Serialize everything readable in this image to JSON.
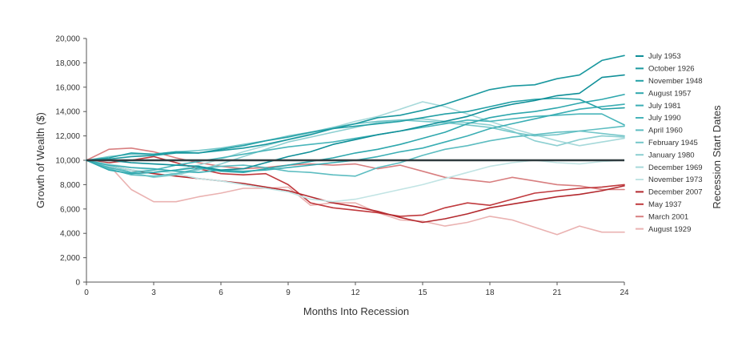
{
  "chart_data": {
    "type": "line",
    "xlabel": "Months Into Recession",
    "ylabel": "Growth of Wealth ($)",
    "legend_title": "Recession Start Dates",
    "legend_position": "right",
    "xlim": [
      0,
      24
    ],
    "ylim": [
      0,
      20000
    ],
    "x_ticks": [
      "0",
      "3",
      "6",
      "9",
      "12",
      "15",
      "18",
      "21",
      "24"
    ],
    "y_ticks": [
      "0",
      "2,000",
      "4,000",
      "6,000",
      "8,000",
      "10,000",
      "12,000",
      "14,000",
      "16,000",
      "18,000",
      "20,000"
    ],
    "baseline": 10000,
    "baseline_color": "#2f3b3f",
    "x": [
      0,
      1,
      2,
      3,
      4,
      5,
      6,
      7,
      8,
      9,
      10,
      11,
      12,
      13,
      14,
      15,
      16,
      17,
      18,
      19,
      20,
      21,
      22,
      23,
      24
    ],
    "series": [
      {
        "name": "July 1953",
        "color": "#0f8f98",
        "values": [
          10000,
          10000,
          9800,
          9700,
          9600,
          9500,
          9200,
          9300,
          9800,
          10300,
          10700,
          11300,
          11700,
          12100,
          12400,
          12800,
          13200,
          13600,
          14200,
          14600,
          14900,
          15300,
          15500,
          16800,
          17000
        ]
      },
      {
        "name": "October 1926",
        "color": "#1a989f",
        "values": [
          10000,
          10100,
          10300,
          10400,
          10600,
          10600,
          10800,
          11000,
          11300,
          11700,
          12100,
          12600,
          13000,
          13500,
          13700,
          14100,
          14600,
          15200,
          15800,
          16100,
          16200,
          16700,
          17000,
          18200,
          18600
        ]
      },
      {
        "name": "November 1948",
        "color": "#23a0a6",
        "values": [
          10000,
          10200,
          10600,
          10500,
          10700,
          10600,
          10900,
          11200,
          11600,
          11900,
          12300,
          12600,
          12800,
          13000,
          13200,
          13500,
          13800,
          14000,
          14400,
          14800,
          15000,
          15100,
          15000,
          14200,
          14300
        ]
      },
      {
        "name": "August 1957",
        "color": "#2ea7ad",
        "values": [
          10000,
          9200,
          8900,
          9000,
          9200,
          9400,
          9100,
          9000,
          9300,
          9600,
          9900,
          10200,
          10600,
          10900,
          11300,
          11800,
          12300,
          13000,
          13500,
          13800,
          14000,
          14300,
          14700,
          15000,
          15400
        ]
      },
      {
        "name": "July 1981",
        "color": "#3aaeb4",
        "values": [
          10000,
          9600,
          9400,
          9300,
          9100,
          9000,
          9200,
          9100,
          9200,
          9400,
          9600,
          9800,
          10000,
          10300,
          10700,
          11000,
          11500,
          12000,
          12600,
          13000,
          13400,
          13800,
          14200,
          14400,
          14600
        ]
      },
      {
        "name": "July 1990",
        "color": "#48b5ba",
        "values": [
          10000,
          9400,
          9000,
          9200,
          9600,
          9900,
          10200,
          10500,
          10800,
          11100,
          11300,
          11500,
          11800,
          12100,
          12400,
          12700,
          13000,
          13300,
          13200,
          13400,
          13600,
          13700,
          13800,
          13800,
          12900
        ]
      },
      {
        "name": "April 1960",
        "color": "#5dbdc1",
        "values": [
          10000,
          9300,
          8800,
          8700,
          8900,
          9300,
          9500,
          9600,
          9400,
          9100,
          9000,
          8800,
          8700,
          9400,
          9800,
          10400,
          10900,
          11200,
          11600,
          11900,
          12100,
          12300,
          12400,
          12600,
          12800
        ]
      },
      {
        "name": "February 1945",
        "color": "#74c6c9",
        "values": [
          10000,
          10300,
          10500,
          10500,
          10700,
          10800,
          11000,
          11300,
          11600,
          12000,
          12300,
          12700,
          13000,
          13200,
          13300,
          13200,
          13100,
          12900,
          12700,
          12300,
          12000,
          12100,
          12400,
          12200,
          12000
        ]
      },
      {
        "name": "January 1980",
        "color": "#8ccfd1",
        "values": [
          10000,
          9600,
          9000,
          8600,
          8800,
          9200,
          9700,
          10300,
          10900,
          11500,
          11900,
          12300,
          12700,
          13100,
          13300,
          13400,
          13200,
          13100,
          12900,
          12400,
          11600,
          11200,
          11700,
          12000,
          11900
        ]
      },
      {
        "name": "December 1969",
        "color": "#a6d9da",
        "values": [
          10000,
          9500,
          9200,
          9000,
          9200,
          9600,
          10100,
          10700,
          11200,
          11700,
          12200,
          12700,
          13200,
          13600,
          14200,
          14800,
          14400,
          13800,
          13200,
          12600,
          12100,
          11600,
          11200,
          11500,
          11800
        ]
      },
      {
        "name": "November 1973",
        "color": "#c1e4e4",
        "values": [
          10000,
          9700,
          9400,
          9200,
          8900,
          8500,
          8300,
          8000,
          7700,
          7400,
          6800,
          6600,
          6800,
          7200,
          7600,
          8000,
          8500,
          9000,
          9500,
          9800,
          10000,
          9800,
          9700,
          9900,
          10000
        ]
      },
      {
        "name": "December 2007",
        "color": "#b3292e",
        "values": [
          10000,
          9500,
          9200,
          8900,
          8700,
          8500,
          8300,
          8100,
          7800,
          7500,
          7000,
          6500,
          6200,
          5800,
          5300,
          4900,
          5200,
          5600,
          6100,
          6400,
          6700,
          7000,
          7200,
          7500,
          7900
        ]
      },
      {
        "name": "May 1937",
        "color": "#c0393d",
        "values": [
          10000,
          9800,
          10000,
          10300,
          9800,
          9300,
          8900,
          8800,
          8900,
          8000,
          6500,
          6100,
          5900,
          5700,
          5400,
          5500,
          6100,
          6500,
          6300,
          6800,
          7300,
          7500,
          7700,
          7800,
          8000
        ]
      },
      {
        "name": "March 2001",
        "color": "#d87f80",
        "values": [
          10000,
          10900,
          11000,
          10700,
          10200,
          9800,
          9500,
          9300,
          9400,
          9600,
          9700,
          9600,
          9700,
          9300,
          9600,
          9100,
          8600,
          8400,
          8200,
          8600,
          8300,
          8000,
          7900,
          7600,
          7600
        ]
      },
      {
        "name": "August 1929",
        "color": "#eab2b1",
        "values": [
          10000,
          9600,
          7600,
          6600,
          6600,
          7000,
          7300,
          7700,
          7700,
          7800,
          6300,
          6500,
          6500,
          5700,
          5100,
          5000,
          4600,
          4900,
          5400,
          5100,
          4500,
          3900,
          4600,
          4100,
          4100
        ]
      }
    ]
  }
}
